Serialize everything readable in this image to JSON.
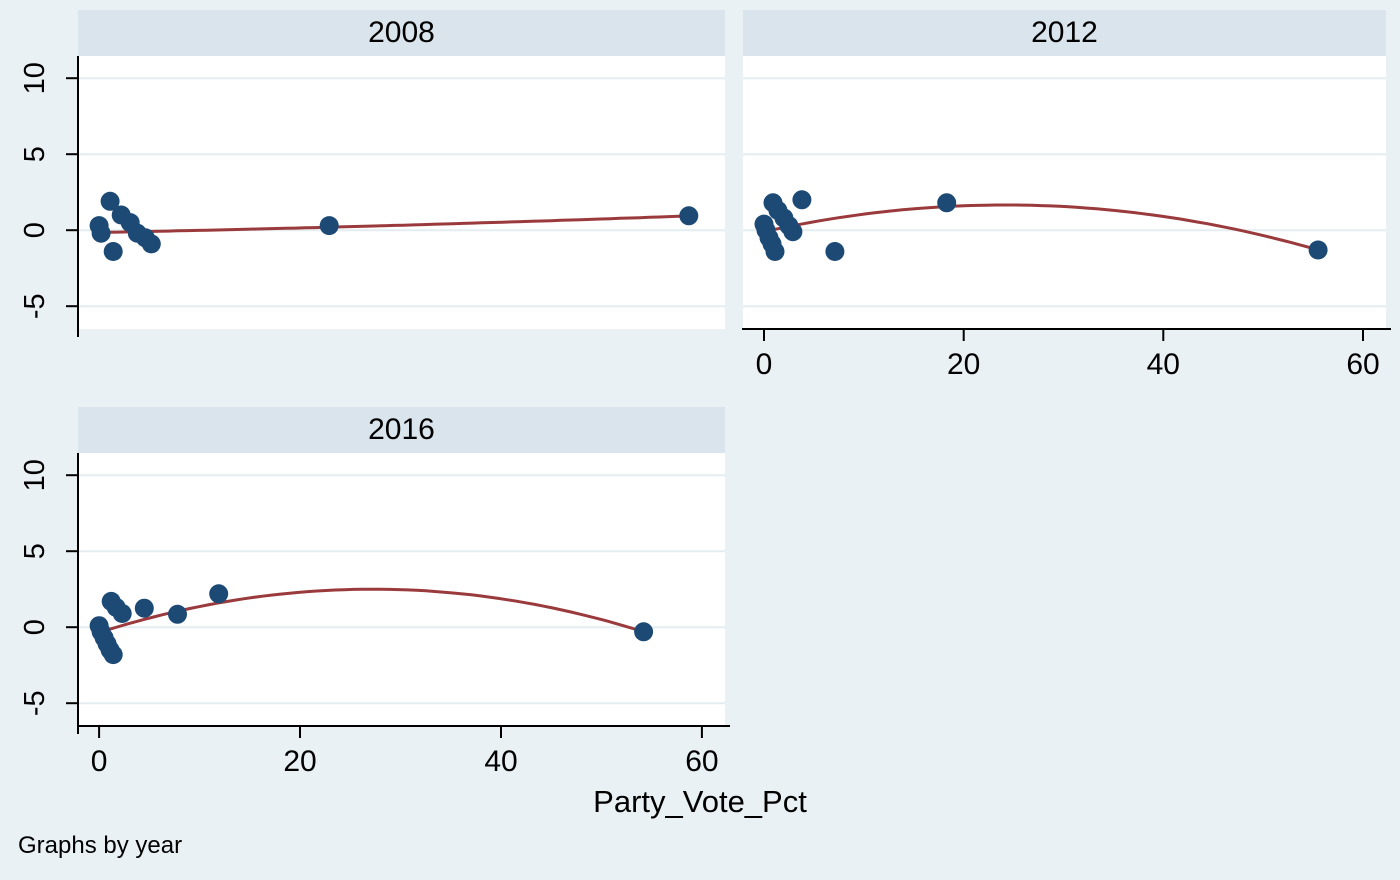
{
  "figure": {
    "note": "Graphs by year",
    "xaxis_title": "Party_Vote_Pct",
    "colors": {
      "background": "#eaf1f4",
      "title_band": "#d9e4ec",
      "plot_background": "#ffffff",
      "gridline": "#e4edf1",
      "marker": "#1c4a75",
      "fit_line": "#9a3a3c",
      "axis": "#000000",
      "text": "#000000"
    }
  },
  "axes": {
    "x_ticks": [
      0,
      20,
      40,
      60
    ],
    "y_ticks": [
      10,
      5,
      0,
      -5
    ],
    "xlim": [
      -2.1,
      62.3
    ],
    "ylim": [
      -6.5,
      11.46
    ],
    "xlabel": "Party_Vote_Pct"
  },
  "chart_data": [
    {
      "type": "scatter",
      "title": "2008",
      "points": [
        [
          0,
          0.3
        ],
        [
          0.2,
          -0.2
        ],
        [
          1.1,
          1.9
        ],
        [
          1.4,
          -1.4
        ],
        [
          2.2,
          1.0
        ],
        [
          3.1,
          0.5
        ],
        [
          3.8,
          -0.2
        ],
        [
          4.6,
          -0.5
        ],
        [
          5.2,
          -0.9
        ],
        [
          22.9,
          0.3
        ],
        [
          58.7,
          0.95
        ]
      ],
      "fit": {
        "kind": "quadratic",
        "a": 9.5e-05,
        "b": 0.013,
        "c": -0.15,
        "x_range": [
          0,
          58.7
        ]
      }
    },
    {
      "type": "scatter",
      "title": "2012",
      "points": [
        [
          0,
          0.4
        ],
        [
          0.2,
          0
        ],
        [
          0.5,
          -0.5
        ],
        [
          0.8,
          -0.9
        ],
        [
          1.1,
          -1.4
        ],
        [
          0.9,
          1.8
        ],
        [
          1.4,
          1.3
        ],
        [
          2.0,
          0.8
        ],
        [
          2.5,
          0.3
        ],
        [
          2.9,
          -0.1
        ],
        [
          3.8,
          2.0
        ],
        [
          7.1,
          -1.4
        ],
        [
          18.3,
          1.8
        ],
        [
          55.5,
          -1.3
        ]
      ],
      "fit": {
        "kind": "quadratic",
        "a": -0.003013,
        "b": 0.1456,
        "c": -0.1,
        "x_range": [
          0,
          55.5
        ]
      }
    },
    {
      "type": "scatter",
      "title": "2016",
      "points": [
        [
          0,
          0.1
        ],
        [
          0.2,
          -0.3
        ],
        [
          0.5,
          -0.7
        ],
        [
          0.8,
          -1.1
        ],
        [
          1.1,
          -1.5
        ],
        [
          1.4,
          -1.8
        ],
        [
          1.2,
          1.7
        ],
        [
          1.7,
          1.3
        ],
        [
          2.3,
          0.9
        ],
        [
          4.5,
          1.25
        ],
        [
          7.8,
          0.85
        ],
        [
          11.9,
          2.2
        ],
        [
          54.2,
          -0.3
        ]
      ],
      "fit": {
        "kind": "quadratic",
        "a": -0.003847,
        "b": 0.2094,
        "c": -0.35,
        "x_range": [
          0,
          54.2
        ]
      }
    }
  ]
}
